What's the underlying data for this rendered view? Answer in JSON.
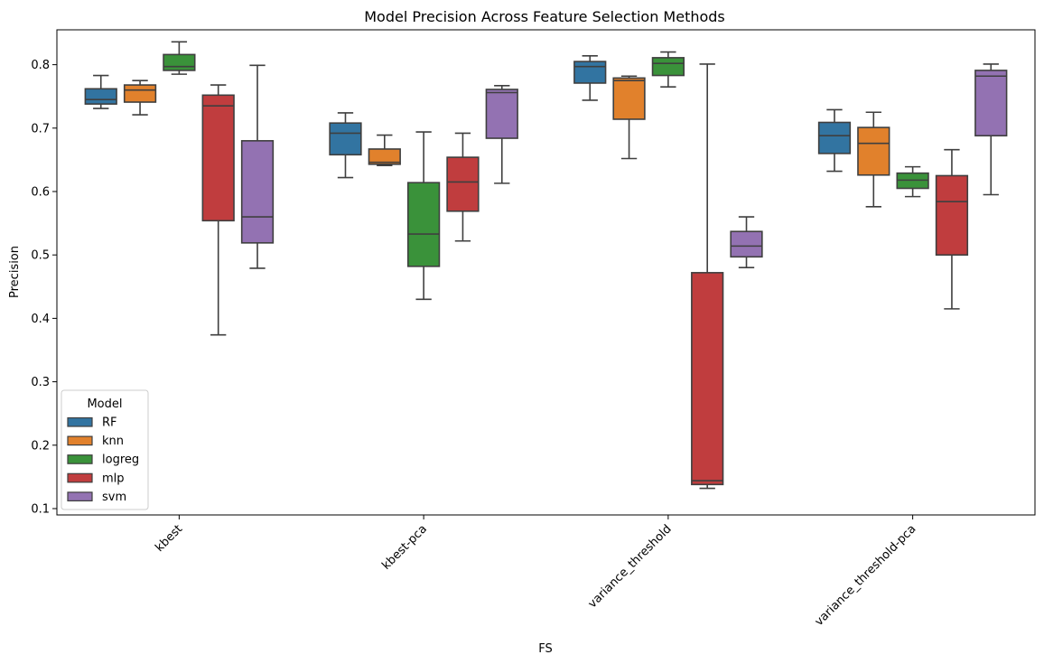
{
  "chart_data": {
    "type": "boxplot",
    "title": "Model Precision Across Feature Selection Methods",
    "xlabel": "FS",
    "ylabel": "Precision",
    "ylim": [
      0.09,
      0.855
    ],
    "yticks": [
      "0.1",
      "0.2",
      "0.3",
      "0.4",
      "0.5",
      "0.6",
      "0.7",
      "0.8"
    ],
    "categories": [
      "kbest",
      "kbest-pca",
      "variance_threshold",
      "variance_threshold-pca"
    ],
    "grid": false,
    "legend": {
      "title": "Model",
      "placement": "lower-left"
    },
    "series": [
      {
        "name": "RF",
        "color": "#3274a1",
        "boxes": [
          {
            "min": 0.731,
            "q1": 0.738,
            "median": 0.745,
            "q3": 0.762,
            "max": 0.783
          },
          {
            "min": 0.622,
            "q1": 0.658,
            "median": 0.692,
            "q3": 0.708,
            "max": 0.724
          },
          {
            "min": 0.744,
            "q1": 0.771,
            "median": 0.797,
            "q3": 0.805,
            "max": 0.814
          },
          {
            "min": 0.632,
            "q1": 0.66,
            "median": 0.688,
            "q3": 0.709,
            "max": 0.729
          }
        ]
      },
      {
        "name": "knn",
        "color": "#e1812c",
        "boxes": [
          {
            "min": 0.721,
            "q1": 0.741,
            "median": 0.76,
            "q3": 0.768,
            "max": 0.775
          },
          {
            "min": 0.641,
            "q1": 0.643,
            "median": 0.646,
            "q3": 0.667,
            "max": 0.689
          },
          {
            "min": 0.652,
            "q1": 0.714,
            "median": 0.775,
            "q3": 0.779,
            "max": 0.782
          },
          {
            "min": 0.576,
            "q1": 0.626,
            "median": 0.676,
            "q3": 0.701,
            "max": 0.725
          }
        ]
      },
      {
        "name": "logreg",
        "color": "#3a923a",
        "boxes": [
          {
            "min": 0.785,
            "q1": 0.791,
            "median": 0.797,
            "q3": 0.816,
            "max": 0.836
          },
          {
            "min": 0.43,
            "q1": 0.482,
            "median": 0.533,
            "q3": 0.614,
            "max": 0.694
          },
          {
            "min": 0.765,
            "q1": 0.783,
            "median": 0.802,
            "q3": 0.811,
            "max": 0.82
          },
          {
            "min": 0.592,
            "q1": 0.605,
            "median": 0.618,
            "q3": 0.629,
            "max": 0.639
          }
        ]
      },
      {
        "name": "mlp",
        "color": "#c03d3e",
        "boxes": [
          {
            "min": 0.374,
            "q1": 0.554,
            "median": 0.735,
            "q3": 0.752,
            "max": 0.768
          },
          {
            "min": 0.522,
            "q1": 0.569,
            "median": 0.615,
            "q3": 0.654,
            "max": 0.692
          },
          {
            "min": 0.132,
            "q1": 0.138,
            "median": 0.144,
            "q3": 0.472,
            "max": 0.801
          },
          {
            "min": 0.415,
            "q1": 0.5,
            "median": 0.584,
            "q3": 0.625,
            "max": 0.666
          }
        ]
      },
      {
        "name": "svm",
        "color": "#9372b2",
        "boxes": [
          {
            "min": 0.479,
            "q1": 0.519,
            "median": 0.56,
            "q3": 0.68,
            "max": 0.799
          },
          {
            "min": 0.613,
            "q1": 0.684,
            "median": 0.756,
            "q3": 0.761,
            "max": 0.767
          },
          {
            "min": 0.48,
            "q1": 0.497,
            "median": 0.514,
            "q3": 0.537,
            "max": 0.56
          },
          {
            "min": 0.595,
            "q1": 0.688,
            "median": 0.782,
            "q3": 0.791,
            "max": 0.801
          }
        ]
      }
    ]
  }
}
